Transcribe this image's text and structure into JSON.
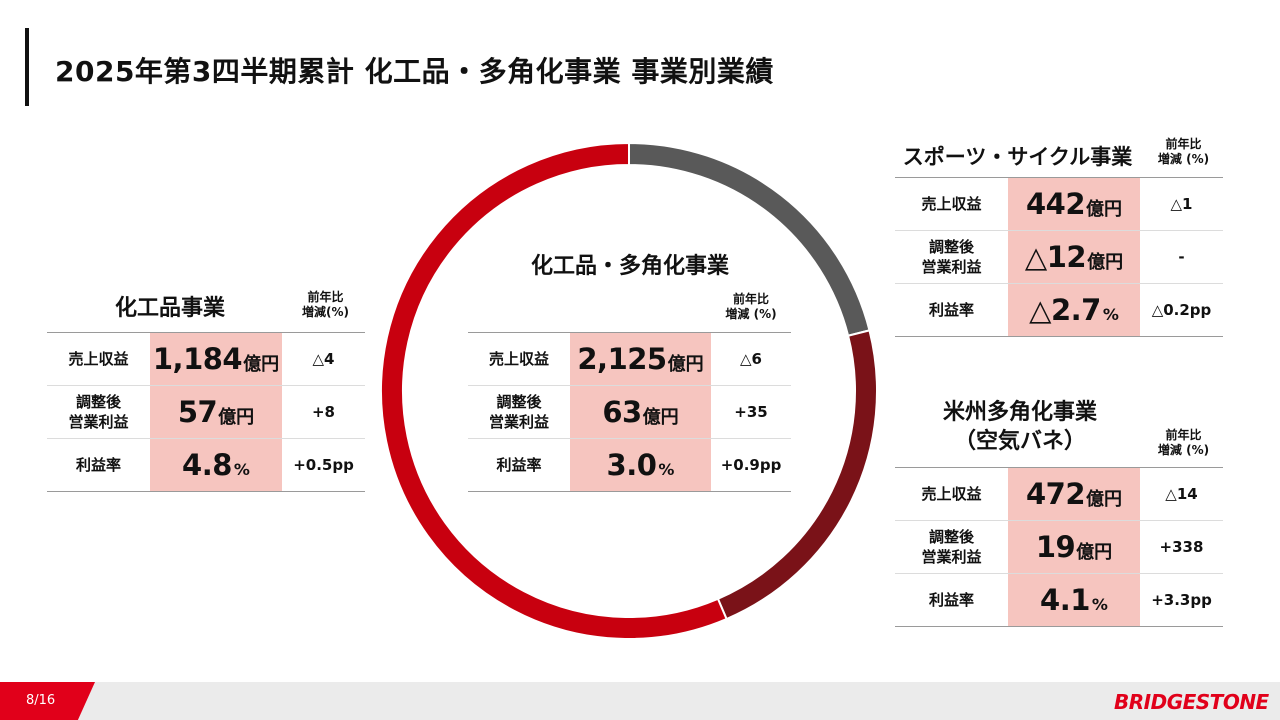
{
  "title": "2025年第3四半期累計 化工品・多角化事業 事業別業績",
  "colors": {
    "red": "#c8000f",
    "dark_red": "#7a1218",
    "gray": "#595959",
    "highlight": "#f6c5bf",
    "brand": "#e1001a"
  },
  "labels": {
    "sales": "売上収益",
    "op_profit_1": "調整後",
    "op_profit_2": "営業利益",
    "margin": "利益率",
    "oku_yen": "億円",
    "pct": "%"
  },
  "center": {
    "title": "化工品・多角化事業",
    "yoy_head_1": "前年比",
    "yoy_head_2": "増減 (%)",
    "sales": "2,125",
    "sales_yoy": "△6",
    "op": "63",
    "op_yoy": "+35",
    "margin": "3.0",
    "margin_yoy": "+0.9pp"
  },
  "left": {
    "title": "化工品事業",
    "yoy_head_1": "前年比",
    "yoy_head_2": "増減(%)",
    "sales": "1,184",
    "sales_yoy": "△4",
    "op": "57",
    "op_yoy": "+8",
    "margin": "4.8",
    "margin_yoy": "+0.5pp"
  },
  "top_right": {
    "title": "スポーツ・サイクル事業",
    "yoy_head_1": "前年比",
    "yoy_head_2": "増減 (%)",
    "sales": "442",
    "sales_yoy": "△1",
    "op": "△12",
    "op_yoy": "-",
    "margin": "△2.7",
    "margin_yoy": "△0.2pp"
  },
  "bottom_right": {
    "title_1": "米州多角化事業",
    "title_2": "（空気バネ）",
    "yoy_head_1": "前年比",
    "yoy_head_2": "増減 (%)",
    "sales": "472",
    "sales_yoy": "△14",
    "op": "19",
    "op_yoy": "+338",
    "margin": "4.1",
    "margin_yoy": "+3.3pp"
  },
  "chart_data": {
    "type": "pie",
    "title": "化工品・多角化事業",
    "total": 2125,
    "slices": [
      {
        "name": "スポーツ・サイクル事業",
        "value": 442,
        "color": "#595959"
      },
      {
        "name": "米州多角化事業（空気バネ）",
        "value": 472,
        "color": "#7a1218"
      },
      {
        "name": "化工品事業",
        "value": 1184,
        "color": "#c8000f"
      }
    ]
  },
  "footer": {
    "page": "8/16",
    "logo": "BRIDGESTONE"
  }
}
